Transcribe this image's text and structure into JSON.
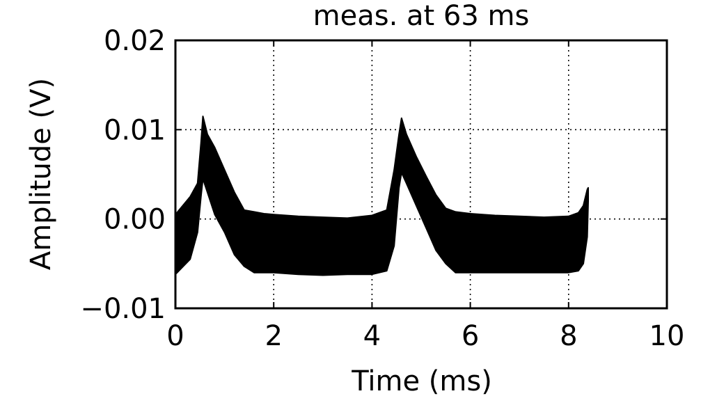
{
  "chart_data": {
    "type": "line",
    "title": "meas. at 63 ms",
    "xlabel": "Time (ms)",
    "ylabel": "Amplitude (V)",
    "xlim": [
      0,
      10
    ],
    "ylim": [
      -0.01,
      0.02
    ],
    "x_ticks": [
      0,
      2,
      4,
      6,
      8,
      10
    ],
    "x_tick_labels": [
      "0",
      "2",
      "4",
      "6",
      "8",
      "10"
    ],
    "y_ticks": [
      -0.01,
      0.0,
      0.01,
      0.02
    ],
    "y_tick_labels": [
      "−0.01",
      "0.00",
      "0.01",
      "0.02"
    ],
    "grid": true,
    "grid_style": "dotted",
    "series_color": "#000000",
    "series": [
      {
        "x": [
          0.0,
          0.3,
          0.45,
          0.52,
          0.56,
          0.65,
          0.8,
          1.0,
          1.2,
          1.4,
          1.6,
          1.8,
          2.0,
          2.5,
          3.0,
          3.5,
          4.0,
          4.3,
          4.45,
          4.55,
          4.6,
          4.7,
          4.9,
          5.1,
          5.3,
          5.5,
          5.7,
          6.0,
          6.5,
          7.0,
          7.5,
          8.0,
          8.2,
          8.3,
          8.38,
          8.4
        ],
        "upper": [
          0.0005,
          0.0025,
          0.004,
          0.0085,
          0.0115,
          0.0095,
          0.008,
          0.0055,
          0.003,
          0.001,
          0.0008,
          0.0006,
          0.0005,
          0.0003,
          0.0002,
          0.0001,
          0.0004,
          0.001,
          0.0055,
          0.0095,
          0.0113,
          0.0095,
          0.007,
          0.0048,
          0.0027,
          0.0012,
          0.0008,
          0.0006,
          0.0004,
          0.0003,
          0.0002,
          0.0003,
          0.0007,
          0.0015,
          0.0033,
          0.0035
        ],
        "lower": [
          -0.0062,
          -0.0045,
          -0.0015,
          0.0025,
          0.0045,
          0.003,
          0.0005,
          -0.0015,
          -0.004,
          -0.0053,
          -0.006,
          -0.006,
          -0.006,
          -0.0062,
          -0.0063,
          -0.0062,
          -0.0062,
          -0.0058,
          -0.003,
          0.0035,
          0.0052,
          0.004,
          0.0015,
          -0.001,
          -0.0035,
          -0.005,
          -0.006,
          -0.006,
          -0.006,
          -0.006,
          -0.006,
          -0.006,
          -0.0058,
          -0.005,
          -0.002,
          0.002
        ]
      }
    ]
  }
}
